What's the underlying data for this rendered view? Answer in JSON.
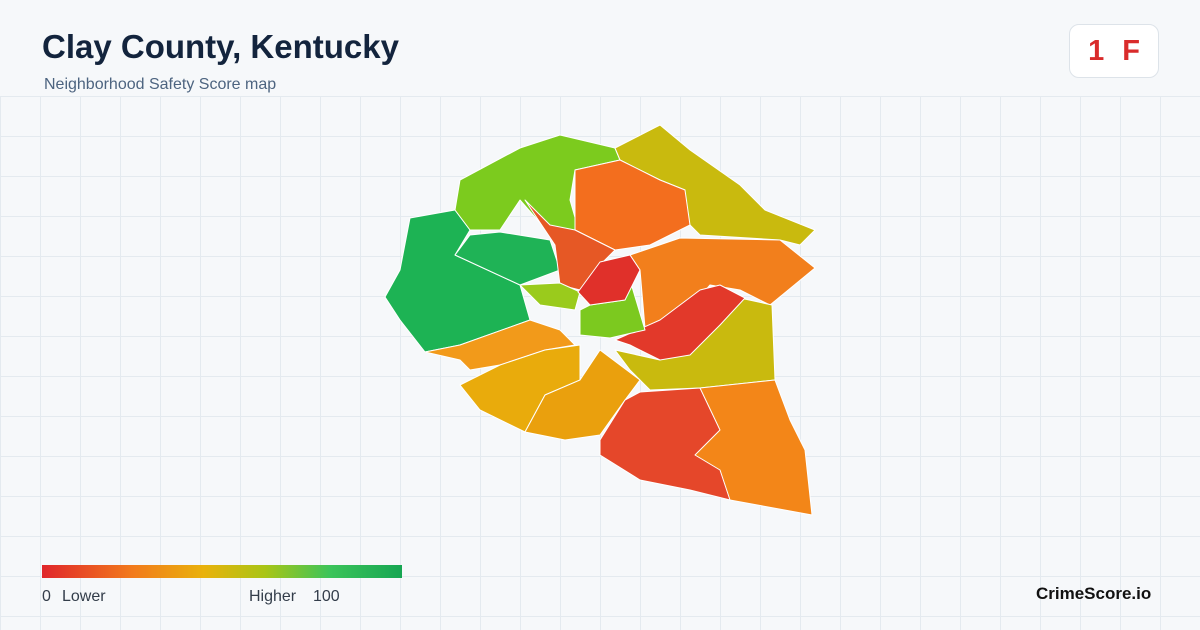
{
  "header": {
    "title": "Clay County, Kentucky",
    "subtitle": "Neighborhood Safety Score map"
  },
  "badge": {
    "score": 1,
    "grade": "F"
  },
  "legend": {
    "min": 0,
    "min_label": "Lower",
    "max_label": "Higher",
    "max": 100
  },
  "footer": {
    "brand": "CrimeScore.io"
  }
}
